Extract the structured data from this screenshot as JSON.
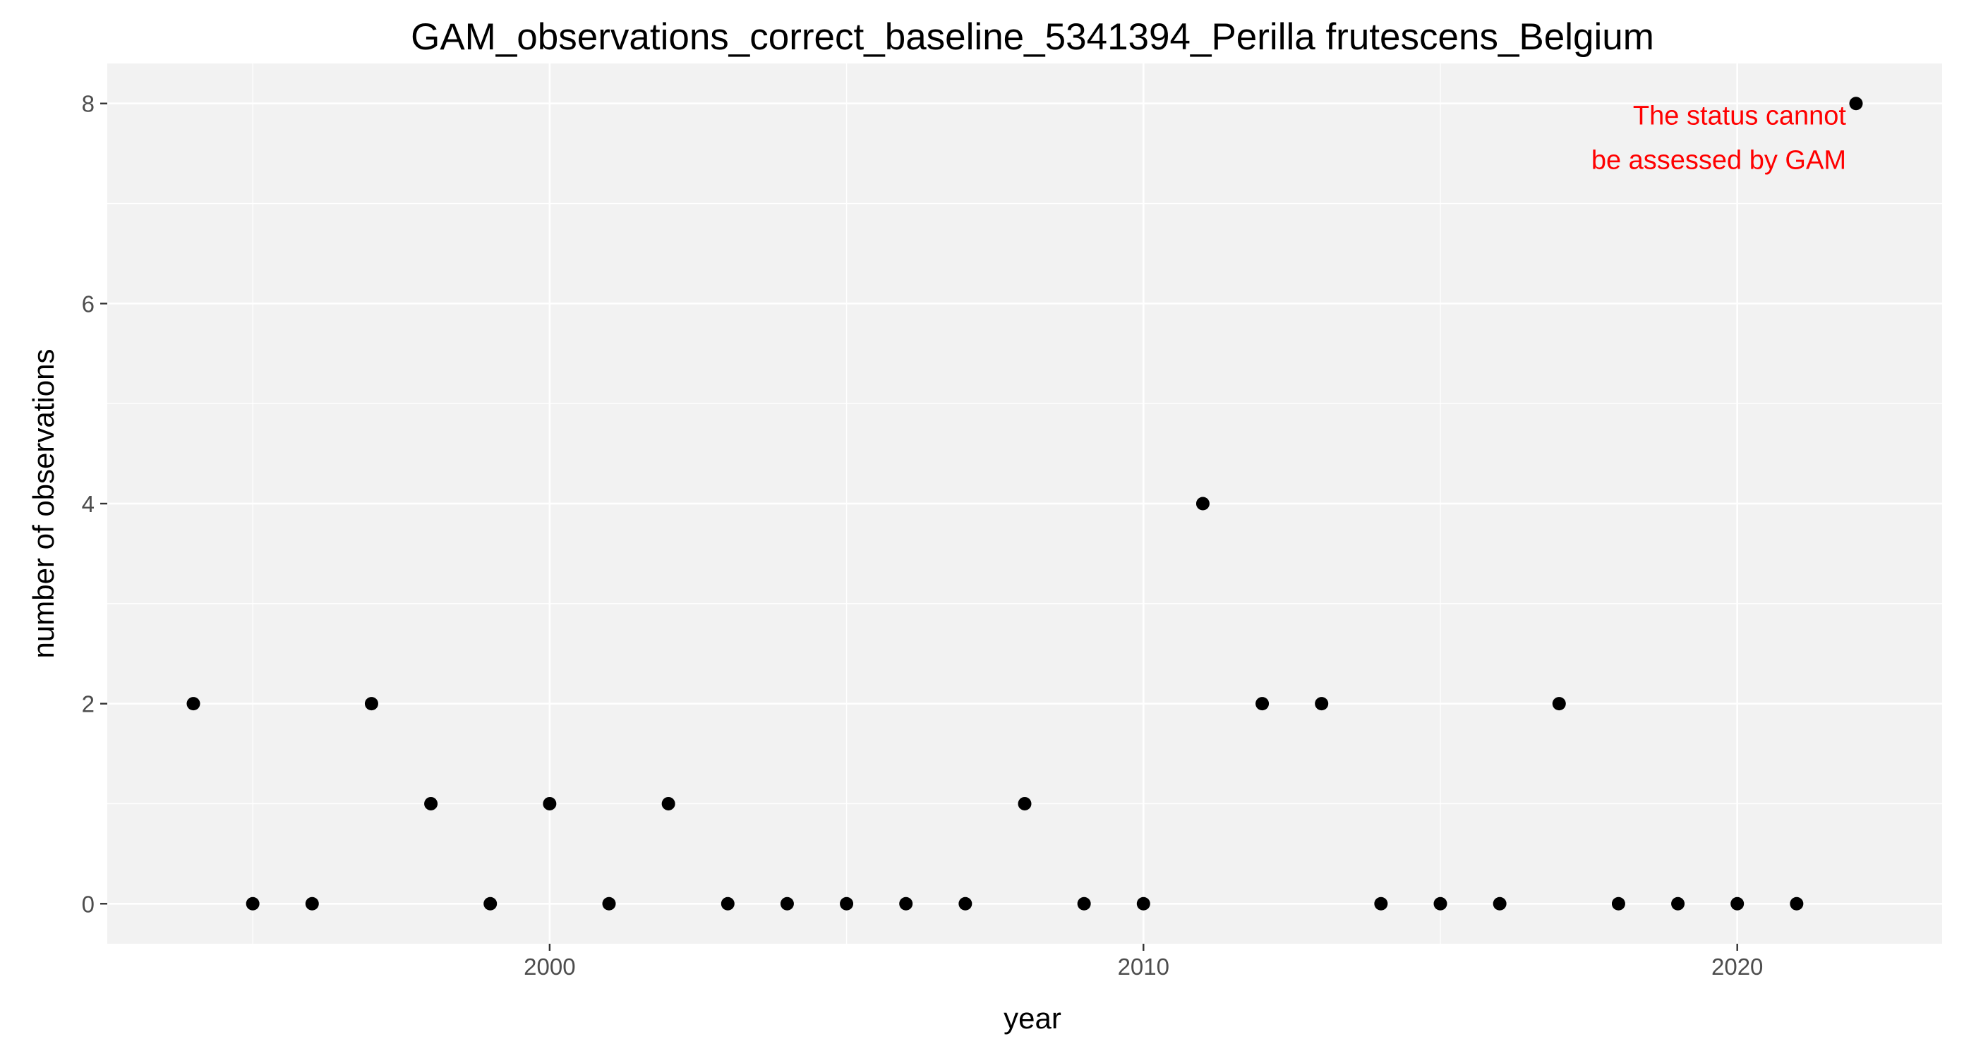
{
  "chart_data": {
    "type": "scatter",
    "title": "GAM_observations_correct_baseline_5341394_Perilla frutescens_Belgium",
    "xlabel": "year",
    "ylabel": "number of observations",
    "x": [
      1994,
      1995,
      1996,
      1997,
      1998,
      1999,
      2000,
      2001,
      2002,
      2003,
      2004,
      2005,
      2006,
      2007,
      2008,
      2009,
      2010,
      2011,
      2012,
      2013,
      2014,
      2015,
      2016,
      2017,
      2018,
      2019,
      2020,
      2021,
      2022
    ],
    "y": [
      2,
      0,
      0,
      2,
      1,
      0,
      1,
      0,
      1,
      0,
      0,
      0,
      0,
      0,
      1,
      0,
      0,
      4,
      2,
      2,
      0,
      0,
      0,
      2,
      0,
      0,
      0,
      0,
      8
    ],
    "xlim": [
      1992.55,
      2023.45
    ],
    "ylim": [
      -0.4,
      8.4
    ],
    "x_ticks": [
      2000,
      2010,
      2020
    ],
    "x_tick_labels": [
      "2000",
      "2010",
      "2020"
    ],
    "y_ticks": [
      0,
      2,
      4,
      6,
      8
    ],
    "y_tick_labels": [
      "0",
      "2",
      "4",
      "6",
      "8"
    ],
    "grid": true,
    "legend": "none",
    "annotation": {
      "lines": [
        "The status cannot",
        "be assessed by GAM"
      ],
      "x": 2022,
      "y": 8,
      "color": "#ff0000"
    },
    "colors": {
      "panel_background": "#f2f2f2",
      "grid": "#ffffff",
      "points": "#000000",
      "tick_labels": "#4d4d4d"
    }
  }
}
